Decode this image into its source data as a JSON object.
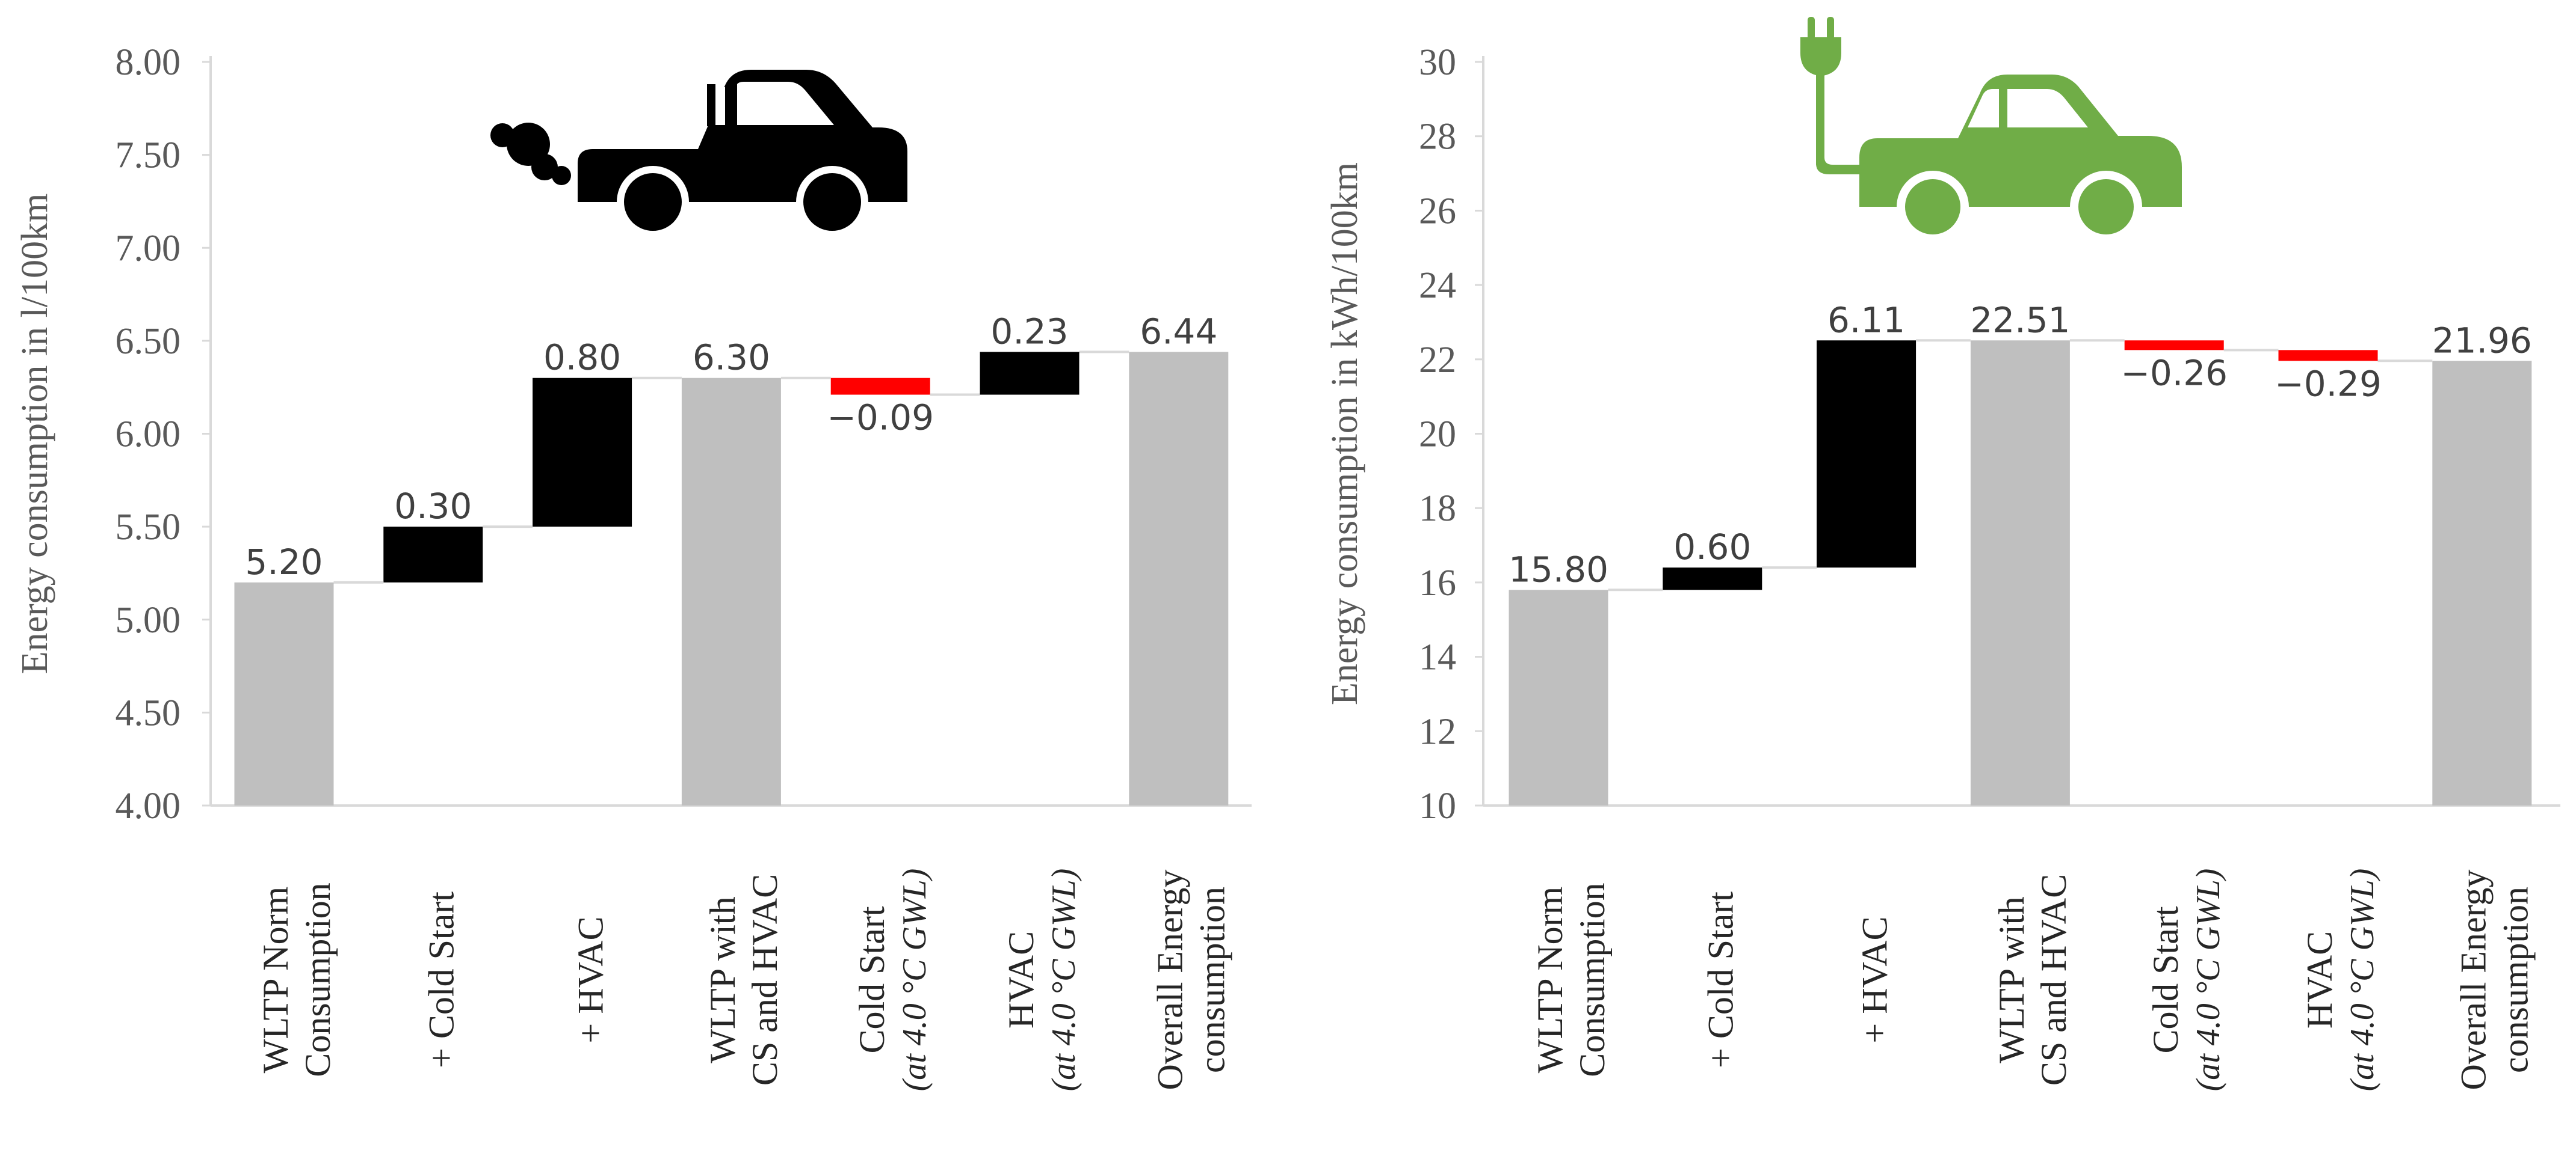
{
  "colors": {
    "total": "#bfbfbf",
    "increase": "#000000",
    "decrease": "#ff0000",
    "connector": "#d9d9d9",
    "axis": "#d9d9d9",
    "ev_icon": "#70ad47",
    "ice_icon": "#000000"
  },
  "icons": {
    "left": "combustion-car-exhaust-icon",
    "right": "electric-car-plug-icon"
  },
  "chart_data": [
    {
      "type": "waterfall",
      "title": "",
      "ylabel": "Energy consumption in l/100km",
      "xlabel": "",
      "ylim": [
        4.0,
        8.0
      ],
      "yticks": [
        "4.00",
        "4.50",
        "5.00",
        "5.50",
        "6.00",
        "6.50",
        "7.00",
        "7.50",
        "8.00"
      ],
      "ytick_values": [
        4.0,
        4.5,
        5.0,
        5.5,
        6.0,
        6.5,
        7.0,
        7.5,
        8.0
      ],
      "categories": [
        {
          "line1": "WLTP Norm",
          "line2": "Consumption",
          "line2_italic": false
        },
        {
          "line1": "+ Cold Start",
          "line2": "",
          "line2_italic": false
        },
        {
          "line1": "+ HVAC",
          "line2": "",
          "line2_italic": false
        },
        {
          "line1": "WLTP with",
          "line2": "CS and HVAC",
          "line2_italic": false
        },
        {
          "line1": "Cold Start",
          "line2": "(at 4.0 °C GWL)",
          "line2_italic": true
        },
        {
          "line1": "HVAC",
          "line2": "(at 4.0 °C GWL)",
          "line2_italic": true
        },
        {
          "line1": "Overall Energy",
          "line2": "consumption",
          "line2_italic": false
        }
      ],
      "bars": [
        {
          "kind": "total",
          "value": 5.2,
          "label": "5.20"
        },
        {
          "kind": "increase",
          "value": 0.3,
          "label": "0.30"
        },
        {
          "kind": "increase",
          "value": 0.8,
          "label": "0.80"
        },
        {
          "kind": "total",
          "value": 6.3,
          "label": "6.30"
        },
        {
          "kind": "decrease",
          "value": -0.09,
          "label": "−0.09"
        },
        {
          "kind": "increase",
          "value": 0.23,
          "label": "0.23"
        },
        {
          "kind": "total",
          "value": 6.44,
          "label": "6.44"
        }
      ]
    },
    {
      "type": "waterfall",
      "title": "",
      "ylabel": "Energy consumption in kWh/100km",
      "xlabel": "",
      "ylim": [
        10,
        30
      ],
      "yticks": [
        "10",
        "12",
        "14",
        "16",
        "18",
        "20",
        "22",
        "24",
        "26",
        "28",
        "30"
      ],
      "ytick_values": [
        10,
        12,
        14,
        16,
        18,
        20,
        22,
        24,
        26,
        28,
        30
      ],
      "categories": [
        {
          "line1": "WLTP Norm",
          "line2": "Consumption",
          "line2_italic": false
        },
        {
          "line1": "+ Cold Start",
          "line2": "",
          "line2_italic": false
        },
        {
          "line1": "+ HVAC",
          "line2": "",
          "line2_italic": false
        },
        {
          "line1": "WLTP with",
          "line2": "CS and HVAC",
          "line2_italic": false
        },
        {
          "line1": "Cold Start",
          "line2": "(at 4.0 °C GWL)",
          "line2_italic": true
        },
        {
          "line1": "HVAC",
          "line2": "(at 4.0 °C GWL)",
          "line2_italic": true
        },
        {
          "line1": "Overall Energy",
          "line2": "consumption",
          "line2_italic": false
        }
      ],
      "bars": [
        {
          "kind": "total",
          "value": 15.8,
          "label": "15.80"
        },
        {
          "kind": "increase",
          "value": 0.6,
          "label": "0.60"
        },
        {
          "kind": "increase",
          "value": 6.11,
          "label": "6.11"
        },
        {
          "kind": "total",
          "value": 22.51,
          "label": "22.51"
        },
        {
          "kind": "decrease",
          "value": -0.26,
          "label": "−0.26"
        },
        {
          "kind": "decrease",
          "value": -0.29,
          "label": "−0.29"
        },
        {
          "kind": "total",
          "value": 21.96,
          "label": "21.96"
        }
      ]
    }
  ]
}
